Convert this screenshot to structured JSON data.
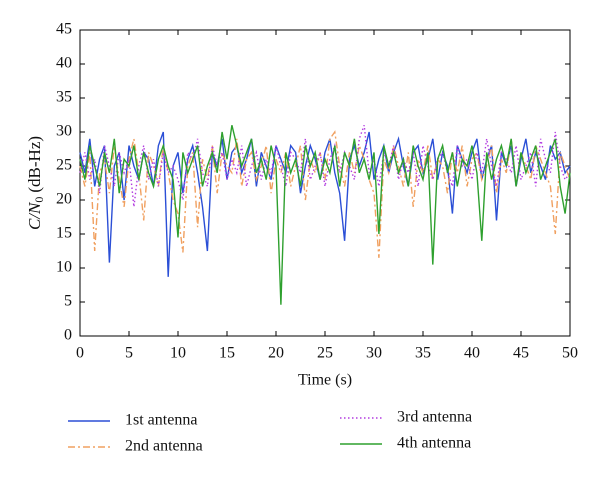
{
  "chart_data": {
    "type": "line",
    "x_label": "Time (s)",
    "y_label": "C/N",
    "y_label_sub": "0",
    "y_label_unit": "(dB-Hz)",
    "xlim": [
      0,
      50
    ],
    "xticks": [
      0,
      5,
      10,
      15,
      20,
      25,
      30,
      35,
      40,
      45,
      50
    ],
    "ylim": [
      0,
      45
    ],
    "yticks": [
      0,
      5,
      10,
      15,
      20,
      25,
      30,
      35,
      40,
      45
    ],
    "x": [
      0,
      0.5,
      1,
      1.5,
      2,
      2.5,
      3,
      3.5,
      4,
      4.5,
      5,
      5.5,
      6,
      6.5,
      7,
      7.5,
      8,
      8.5,
      9,
      9.5,
      10,
      10.5,
      11,
      11.5,
      12,
      12.5,
      13,
      13.5,
      14,
      14.5,
      15,
      15.5,
      16,
      16.5,
      17,
      17.5,
      18,
      18.5,
      19,
      19.5,
      20,
      20.5,
      21,
      21.5,
      22,
      22.5,
      23,
      23.5,
      24,
      24.5,
      25,
      25.5,
      26,
      26.5,
      27,
      27.5,
      28,
      28.5,
      29,
      29.5,
      30,
      30.5,
      31,
      31.5,
      32,
      32.5,
      33,
      33.5,
      34,
      34.5,
      35,
      35.5,
      36,
      36.5,
      37,
      37.5,
      38,
      38.5,
      39,
      39.5,
      40,
      40.5,
      41,
      41.5,
      42,
      42.5,
      43,
      43.5,
      44,
      44.5,
      45,
      45.5,
      46,
      46.5,
      47,
      47.5,
      48,
      48.5,
      49,
      49.5,
      50
    ],
    "series": [
      {
        "name": "1st antenna",
        "color": "#2b4fd6",
        "dash": "",
        "values": [
          27,
          24,
          29,
          22,
          26,
          28,
          10.8,
          25,
          27,
          20,
          28,
          25,
          23,
          27,
          26,
          22,
          28,
          30,
          8.7,
          25,
          27,
          21,
          26,
          28,
          24,
          19,
          12.5,
          27,
          25,
          29,
          23,
          27,
          28,
          24,
          26,
          29,
          22,
          27,
          25,
          23,
          28,
          26,
          24,
          28,
          27,
          21,
          25,
          28,
          26,
          23,
          27,
          29,
          24,
          21,
          14,
          26,
          28,
          25,
          27,
          30,
          23,
          26,
          28,
          24,
          27,
          29,
          25,
          22,
          27,
          28,
          24,
          26,
          29,
          23,
          27,
          25,
          18,
          28,
          26,
          24,
          27,
          29,
          23,
          26,
          28,
          17,
          27,
          25,
          28,
          22,
          26,
          29,
          24,
          27,
          25,
          23,
          28,
          26,
          27,
          24,
          25
        ]
      },
      {
        "name": "2nd antenna",
        "color": "#f0a060",
        "dash": "7,3,2,3",
        "values": [
          25,
          22,
          27,
          12.5,
          24,
          26,
          21,
          28,
          23,
          19,
          26,
          29,
          24,
          17,
          27,
          25,
          22,
          28,
          24,
          20,
          18,
          12.3,
          25,
          27,
          16,
          26,
          23,
          28,
          21,
          27,
          25,
          24,
          29,
          22,
          26,
          27,
          23,
          25,
          28,
          21,
          26,
          24,
          27,
          22,
          25,
          28,
          20,
          26,
          24,
          27,
          23,
          29,
          30,
          25,
          22,
          27,
          24,
          28,
          26,
          23,
          21,
          11.5,
          26,
          24,
          28,
          25,
          22,
          27,
          19,
          26,
          24,
          28,
          23,
          26,
          25,
          21,
          27,
          24,
          28,
          22,
          26,
          27,
          23,
          25,
          28,
          21,
          26,
          24,
          29,
          22,
          27,
          25,
          23,
          28,
          26,
          24,
          22,
          15,
          27,
          25,
          23
        ]
      },
      {
        "name": "3rd antenna",
        "color": "#b23be0",
        "dash": "1.5,2.5",
        "values": [
          24,
          27,
          23,
          26,
          21,
          28,
          25,
          22,
          27,
          24,
          26,
          19,
          25,
          28,
          23,
          26,
          22,
          27,
          24,
          25,
          23,
          20,
          27,
          26,
          29,
          24,
          22,
          28,
          25,
          27,
          23,
          26,
          24,
          28,
          22,
          25,
          27,
          23,
          26,
          24,
          28,
          25,
          22,
          27,
          26,
          24,
          29,
          23,
          25,
          27,
          22,
          26,
          28,
          24,
          27,
          25,
          23,
          29,
          31,
          24,
          26,
          22,
          27,
          25,
          28,
          23,
          26,
          24,
          27,
          22,
          28,
          25,
          23,
          26,
          27,
          24,
          22,
          28,
          25,
          26,
          23,
          27,
          24,
          29,
          25,
          22,
          27,
          26,
          24,
          28,
          23,
          25,
          27,
          22,
          29,
          26,
          24,
          30,
          25,
          23,
          24
        ]
      },
      {
        "name": "4th antenna",
        "color": "#2ea02e",
        "dash": "",
        "values": [
          26,
          23,
          28,
          25,
          22,
          27,
          24,
          29,
          21,
          26,
          25,
          28,
          23,
          27,
          24,
          22,
          26,
          28,
          25,
          23,
          14.5,
          27,
          24,
          26,
          28,
          22,
          25,
          27,
          24,
          30,
          26,
          31,
          28,
          25,
          27,
          29,
          24,
          26,
          23,
          28,
          25,
          4.6,
          27,
          24,
          26,
          22,
          28,
          25,
          27,
          23,
          26,
          24,
          28,
          22,
          27,
          25,
          29,
          24,
          26,
          23,
          27,
          15,
          28,
          25,
          27,
          24,
          26,
          22,
          28,
          25,
          23,
          27,
          10.5,
          26,
          28,
          24,
          27,
          22,
          26,
          25,
          28,
          24,
          14,
          27,
          23,
          26,
          28,
          25,
          29,
          22,
          27,
          24,
          26,
          28,
          23,
          25,
          27,
          29,
          22,
          18,
          24
        ]
      }
    ],
    "legend": "bottom"
  }
}
